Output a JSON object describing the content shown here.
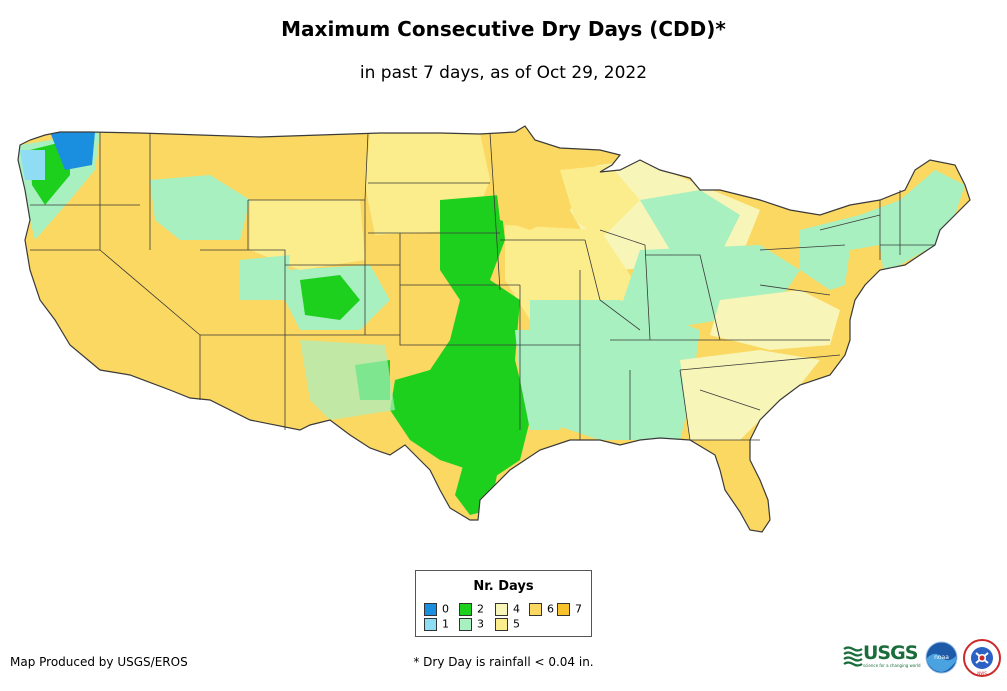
{
  "title": "Maximum Consecutive Dry Days (CDD)*",
  "subtitle": "in past 7 days, as of Oct 29, 2022",
  "legend": {
    "title": "Nr. Days",
    "items": [
      {
        "label": "0",
        "color": "#1a8fe0"
      },
      {
        "label": "1",
        "color": "#8fdcf5"
      },
      {
        "label": "2",
        "color": "#1ed01e"
      },
      {
        "label": "3",
        "color": "#a8f0c0"
      },
      {
        "label": "4",
        "color": "#f8f5b8"
      },
      {
        "label": "5",
        "color": "#fbed8c"
      },
      {
        "label": "6",
        "color": "#fbd862"
      },
      {
        "label": "7",
        "color": "#f7c22b"
      }
    ]
  },
  "footer": {
    "credit": "Map Produced by USGS/EROS",
    "note": "* Dry Day is rainfall < 0.04 in."
  },
  "logos": {
    "usgs": {
      "text": "USGS",
      "tagline": "science for a changing world",
      "color": "#1a6d3a"
    },
    "noaa": {
      "text": "noaa"
    },
    "nws": {
      "text": "NWS"
    }
  },
  "map": {
    "region": "Contiguous United States",
    "land_color": "#fbd862",
    "border_color": "#3a3a3a"
  }
}
